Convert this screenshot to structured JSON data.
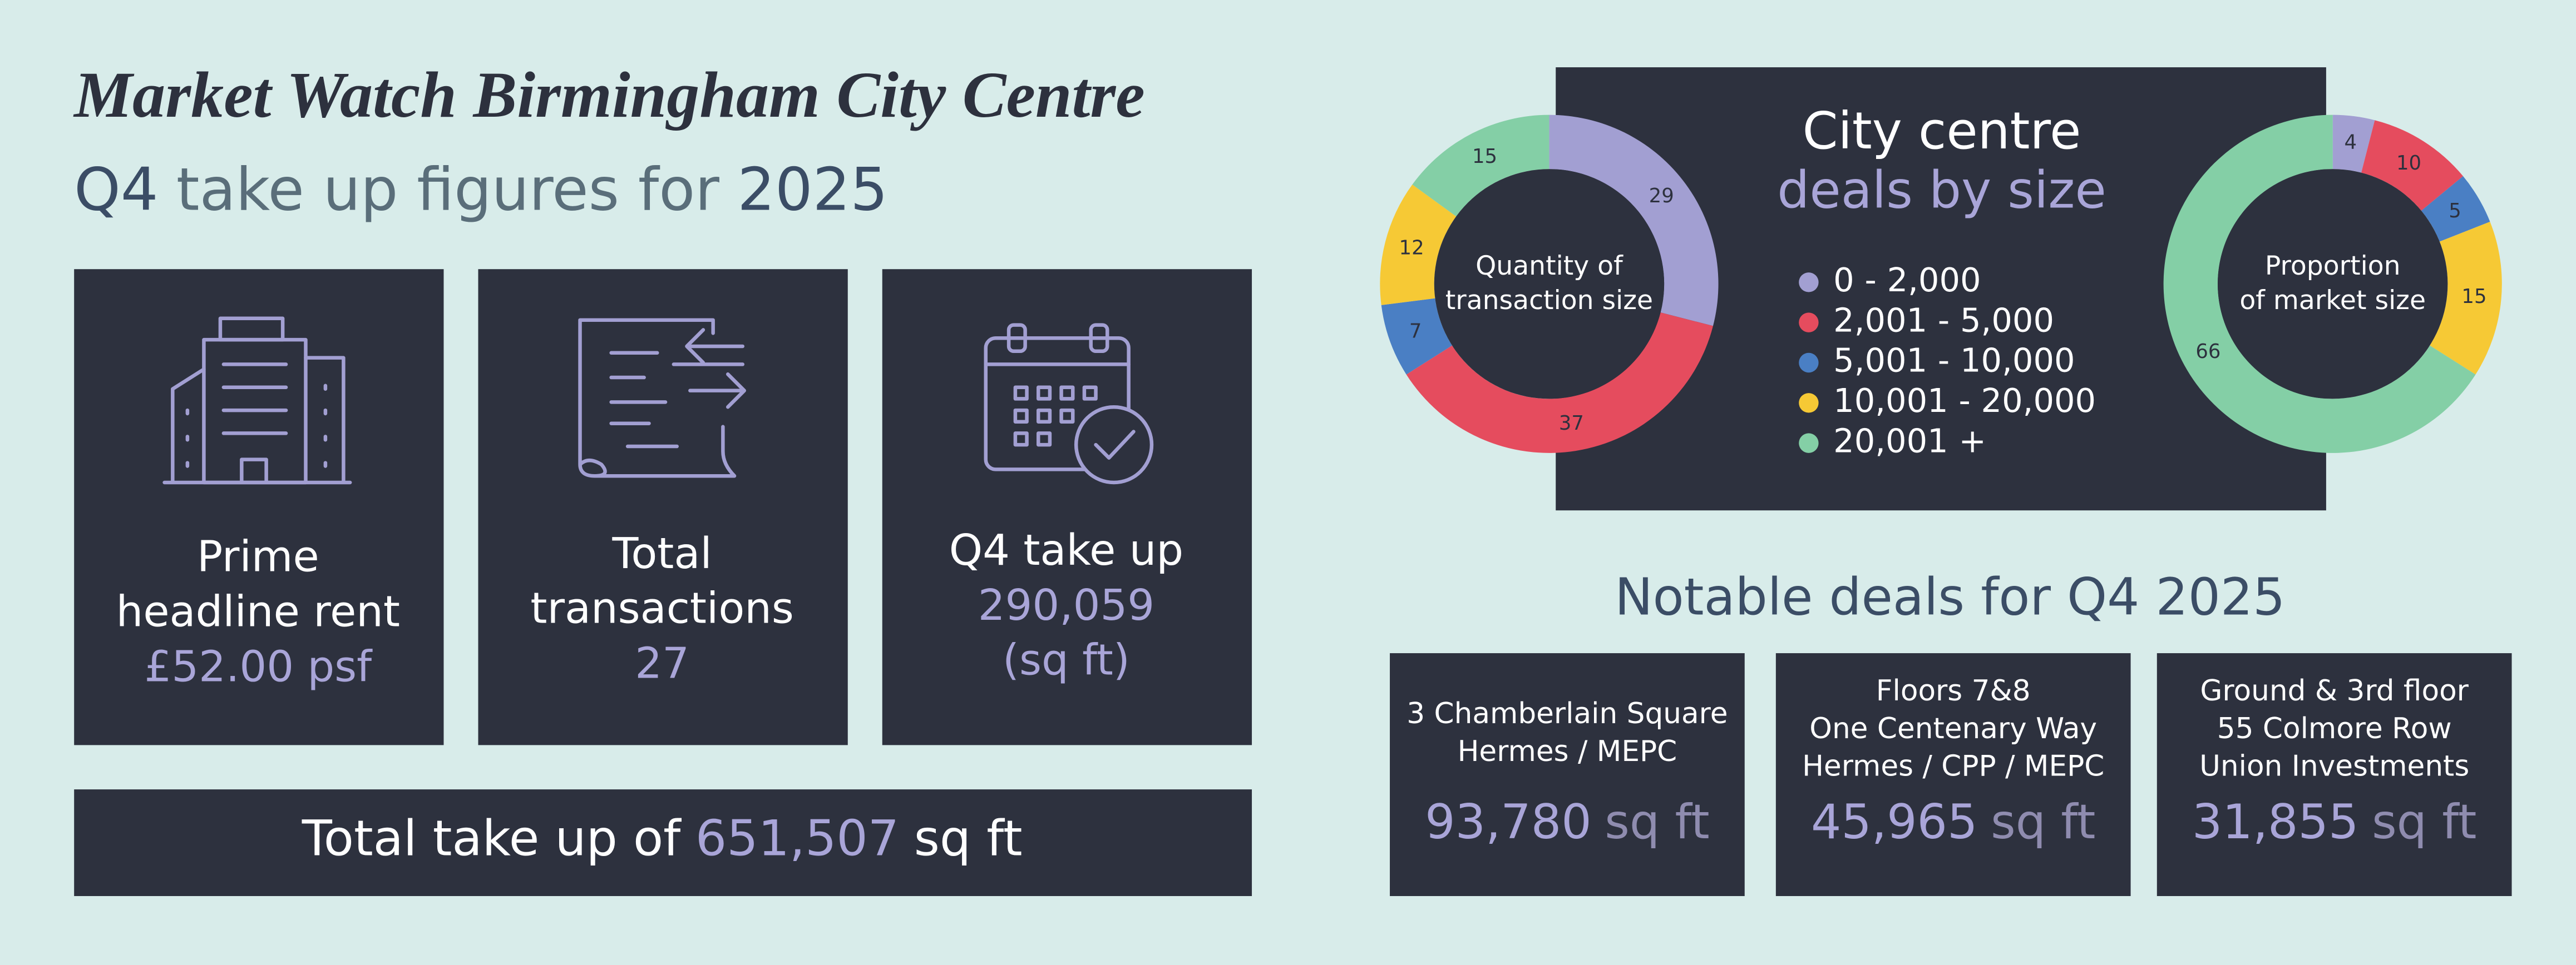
{
  "header": {
    "title": "Market Watch Birmingham City Centre",
    "subtitle": [
      "Q4",
      "take up figures for",
      "2025"
    ]
  },
  "cards": [
    {
      "label": [
        "Prime",
        "headline rent"
      ],
      "value": [
        "£52.00 psf"
      ]
    },
    {
      "label": [
        "Total",
        "transactions"
      ],
      "value": [
        "27"
      ]
    },
    {
      "label": [
        "Q4 take up"
      ],
      "value": [
        "290,059",
        "(sq ft)"
      ]
    }
  ],
  "total": {
    "text": "Total take up of",
    "value": "651,507",
    "unit": "sq ft"
  },
  "deals_panel": {
    "title": [
      "City centre",
      "deals by size"
    ]
  },
  "chart_data": [
    {
      "type": "pie",
      "title": [
        "Quantity of",
        "transaction size"
      ],
      "categories": [
        "0 - 2,000",
        "2,001 - 5,000",
        "5,001 - 10,000",
        "10,001 - 20,000",
        "20,001 +"
      ],
      "values": [
        29,
        37,
        7,
        12,
        15
      ],
      "colors": [
        "#a29fd2",
        "#e54c5e",
        "#4a7fc4",
        "#f6c935",
        "#84cfa6"
      ]
    },
    {
      "type": "pie",
      "title": [
        "Proportion",
        "of market size"
      ],
      "categories": [
        "0 - 2,000",
        "2,001 - 5,000",
        "5,001 - 10,000",
        "10,001 - 20,000",
        "20,001 +"
      ],
      "values": [
        4,
        10,
        5,
        15,
        66
      ],
      "colors": [
        "#a29fd2",
        "#e54c5e",
        "#4a7fc4",
        "#f6c935",
        "#84cfa6"
      ]
    }
  ],
  "notable": {
    "title": "Notable deals for Q4 2025",
    "deals": [
      {
        "lines": [
          "3 Chamberlain Square",
          "Hermes / MEPC"
        ],
        "value": "93,780",
        "unit": "sq ft"
      },
      {
        "lines": [
          "Floors 7&8",
          "One Centenary Way",
          "Hermes / CPP / MEPC"
        ],
        "value": "45,965",
        "unit": "sq ft"
      },
      {
        "lines": [
          "Ground & 3rd floor",
          "55 Colmore Row",
          "Union Investments"
        ],
        "value": "31,855",
        "unit": "sq ft"
      }
    ]
  }
}
